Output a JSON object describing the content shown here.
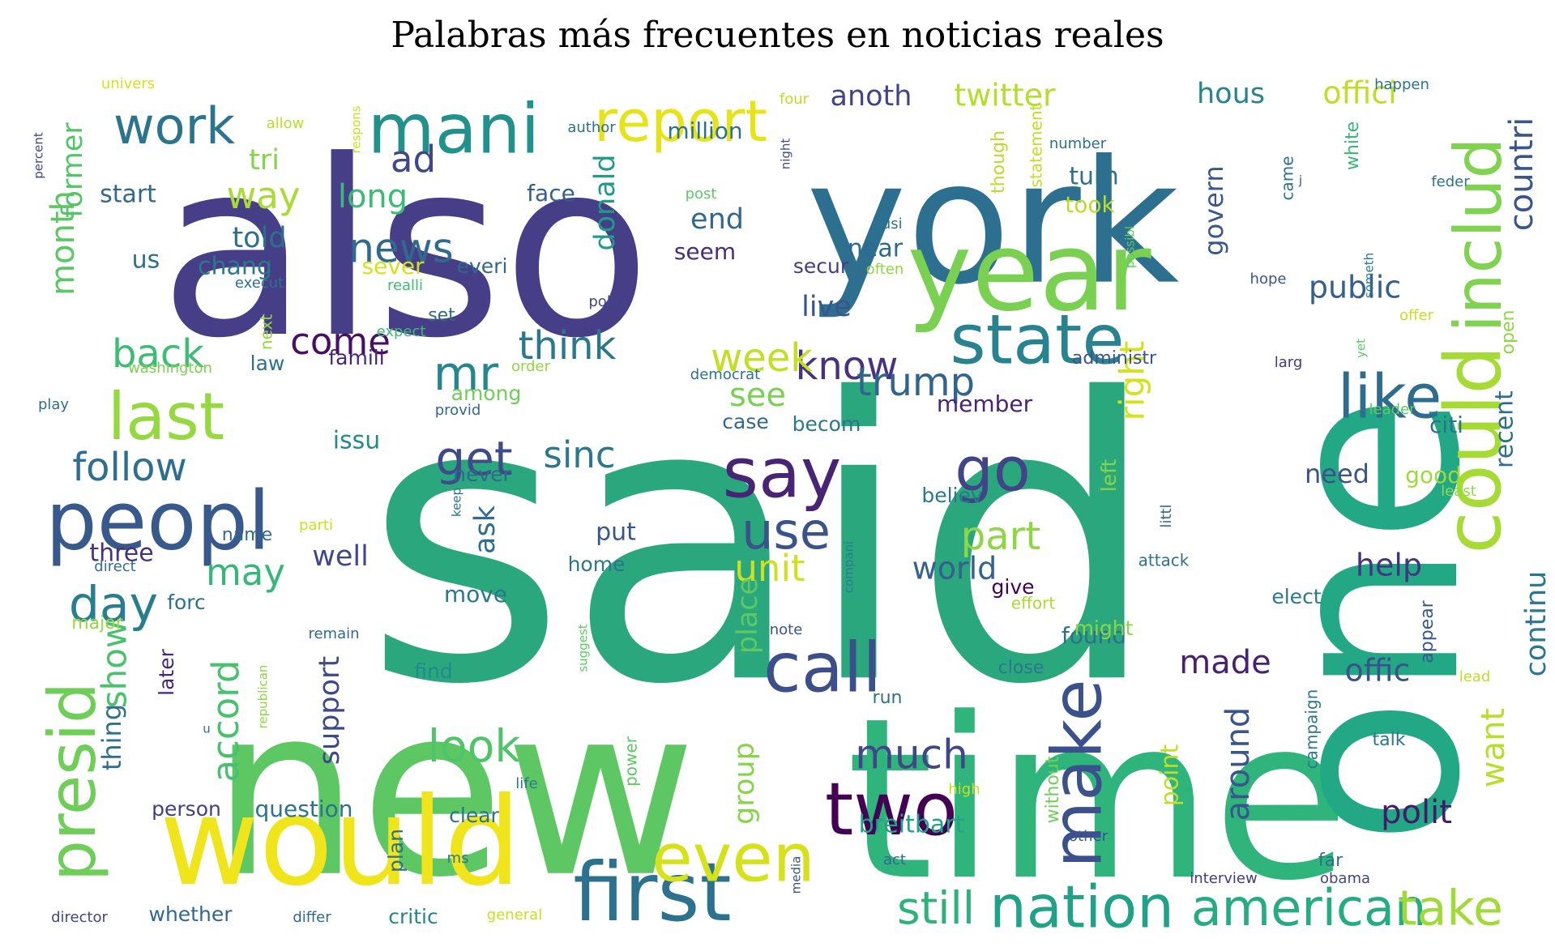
{
  "chart_data": {
    "type": "wordcloud",
    "title": "Palabras más frecuentes en noticias reales",
    "words": [
      {
        "text": "said",
        "size": 480,
        "color": "#2aa77d"
      },
      {
        "text": "also",
        "size": 300,
        "color": "#463e86"
      },
      {
        "text": "new",
        "size": 290,
        "color": "#5dc863"
      },
      {
        "text": "time",
        "size": 275,
        "color": "#2fb47c"
      },
      {
        "text": "one",
        "size": 300,
        "color": "#22a884",
        "rot": 1
      },
      {
        "text": "york",
        "size": 210,
        "color": "#2d6f8e"
      },
      {
        "text": "would",
        "size": 150,
        "color": "#f0e51a"
      },
      {
        "text": "year",
        "size": 135,
        "color": "#7ad151"
      },
      {
        "text": "could",
        "size": 95,
        "color": "#a6db35",
        "rot": 1
      },
      {
        "text": "mani",
        "size": 85,
        "color": "#21918c"
      },
      {
        "text": "peopl",
        "size": 100,
        "color": "#38598c"
      },
      {
        "text": "first",
        "size": 100,
        "color": "#2c728e"
      },
      {
        "text": "state",
        "size": 85,
        "color": "#26838f"
      },
      {
        "text": "make",
        "size": 85,
        "color": "#3b518b",
        "rot": 1
      },
      {
        "text": "two",
        "size": 90,
        "color": "#440154"
      },
      {
        "text": "even",
        "size": 82,
        "color": "#d5e21a"
      },
      {
        "text": "call",
        "size": 85,
        "color": "#3c4f8a"
      },
      {
        "text": "say",
        "size": 85,
        "color": "#482475"
      },
      {
        "text": "last",
        "size": 80,
        "color": "#95d840"
      },
      {
        "text": "includ",
        "size": 80,
        "color": "#7fd34e",
        "rot": 1
      },
      {
        "text": "presid",
        "size": 80,
        "color": "#6ece58",
        "rot": 1
      },
      {
        "text": "like",
        "size": 75,
        "color": "#2e6d8e"
      },
      {
        "text": "report",
        "size": 70,
        "color": "#e5e419"
      },
      {
        "text": "go",
        "size": 75,
        "color": "#414487"
      },
      {
        "text": "nation",
        "size": 72,
        "color": "#1fa287"
      },
      {
        "text": "american",
        "size": 62,
        "color": "#25ac82"
      },
      {
        "text": "take",
        "size": 60,
        "color": "#a0da39"
      },
      {
        "text": "work",
        "size": 62,
        "color": "#2b748e"
      },
      {
        "text": "use",
        "size": 62,
        "color": "#3a538b"
      },
      {
        "text": "get",
        "size": 58,
        "color": "#3e4a89"
      },
      {
        "text": "day",
        "size": 60,
        "color": "#277f8e"
      },
      {
        "text": "still",
        "size": 55,
        "color": "#2db27d"
      },
      {
        "text": "mr",
        "size": 58,
        "color": "#24868e"
      },
      {
        "text": "much",
        "size": 50,
        "color": "#404688"
      },
      {
        "text": "look",
        "size": 55,
        "color": "#50c46a"
      },
      {
        "text": "know",
        "size": 48,
        "color": "#46327e"
      },
      {
        "text": "trump",
        "size": 48,
        "color": "#32658e"
      },
      {
        "text": "think",
        "size": 48,
        "color": "#2a788e"
      },
      {
        "text": "news",
        "size": 50,
        "color": "#306a8e"
      },
      {
        "text": "part",
        "size": 48,
        "color": "#8ed645"
      },
      {
        "text": "week",
        "size": 48,
        "color": "#c2df23"
      },
      {
        "text": "follow",
        "size": 48,
        "color": "#2e6e8e"
      },
      {
        "text": "sinc",
        "size": 45,
        "color": "#2a788e"
      },
      {
        "text": "back",
        "size": 48,
        "color": "#3dbc74"
      },
      {
        "text": "come",
        "size": 45,
        "color": "#471063"
      },
      {
        "text": "way",
        "size": 45,
        "color": "#a8db34"
      },
      {
        "text": "ad",
        "size": 45,
        "color": "#3f4788"
      },
      {
        "text": "countri",
        "size": 40,
        "color": "#39568c",
        "rot": 1
      },
      {
        "text": "unit",
        "size": 45,
        "color": "#d0e11c"
      },
      {
        "text": "may",
        "size": 45,
        "color": "#35b779"
      },
      {
        "text": "offic",
        "size": 38,
        "color": "#3b528b"
      },
      {
        "text": "made",
        "size": 40,
        "color": "#482173"
      },
      {
        "text": "polit",
        "size": 40,
        "color": "#48186a"
      },
      {
        "text": "help",
        "size": 38,
        "color": "#453581"
      },
      {
        "text": "world",
        "size": 38,
        "color": "#34618d"
      },
      {
        "text": "right",
        "size": 42,
        "color": "#d2e21b",
        "rot": 1
      },
      {
        "text": "public",
        "size": 38,
        "color": "#35608d"
      },
      {
        "text": "accord",
        "size": 45,
        "color": "#48c16e",
        "rot": 1
      },
      {
        "text": "show",
        "size": 42,
        "color": "#4ac16d",
        "rot": 1
      },
      {
        "text": "anoth",
        "size": 35,
        "color": "#414487"
      },
      {
        "text": "twitter",
        "size": 38,
        "color": "#b5de2b"
      },
      {
        "text": "hous",
        "size": 35,
        "color": "#25848e"
      },
      {
        "text": "offici",
        "size": 38,
        "color": "#bddf26"
      },
      {
        "text": "month",
        "size": 40,
        "color": "#5cc863",
        "rot": 1
      },
      {
        "text": "long",
        "size": 40,
        "color": "#3bbb75"
      },
      {
        "text": "tri",
        "size": 35,
        "color": "#84d44b"
      },
      {
        "text": "told",
        "size": 35,
        "color": "#2d708e"
      },
      {
        "text": "end",
        "size": 35,
        "color": "#31688e"
      },
      {
        "text": "donald",
        "size": 35,
        "color": "#1e9b8a",
        "rot": 1
      },
      {
        "text": "start",
        "size": 30,
        "color": "#31688e"
      },
      {
        "text": "former",
        "size": 35,
        "color": "#52c569",
        "rot": 1
      },
      {
        "text": "chang",
        "size": 30,
        "color": "#2a788e"
      },
      {
        "text": "us",
        "size": 30,
        "color": "#2d718e"
      },
      {
        "text": "sever",
        "size": 28,
        "color": "#d5e21a"
      },
      {
        "text": "everi",
        "size": 25,
        "color": "#31688e"
      },
      {
        "text": "face",
        "size": 28,
        "color": "#355f8d"
      },
      {
        "text": "million",
        "size": 28,
        "color": "#2c728e"
      },
      {
        "text": "turn",
        "size": 30,
        "color": "#2d708e"
      },
      {
        "text": "took",
        "size": 28,
        "color": "#bade28"
      },
      {
        "text": "govern",
        "size": 32,
        "color": "#38588c",
        "rot": 1
      },
      {
        "text": "near",
        "size": 30,
        "color": "#31688e"
      },
      {
        "text": "seem",
        "size": 28,
        "color": "#472d7b"
      },
      {
        "text": "live",
        "size": 35,
        "color": "#3a548c"
      },
      {
        "text": "secur",
        "size": 25,
        "color": "#433e85"
      },
      {
        "text": "see",
        "size": 40,
        "color": "#7ad151"
      },
      {
        "text": "member",
        "size": 28,
        "color": "#482475"
      },
      {
        "text": "case",
        "size": 25,
        "color": "#31688e"
      },
      {
        "text": "becom",
        "size": 25,
        "color": "#2a788e"
      },
      {
        "text": "issu",
        "size": 30,
        "color": "#238a8d"
      },
      {
        "text": "ask",
        "size": 35,
        "color": "#2f6c8e",
        "rot": 1
      },
      {
        "text": "never",
        "size": 25,
        "color": "#31688e"
      },
      {
        "text": "among",
        "size": 25,
        "color": "#6ece58"
      },
      {
        "text": "put",
        "size": 30,
        "color": "#3a548c"
      },
      {
        "text": "well",
        "size": 35,
        "color": "#3f4889"
      },
      {
        "text": "three",
        "size": 30,
        "color": "#46337e"
      },
      {
        "text": "need",
        "size": 32,
        "color": "#3b528b"
      },
      {
        "text": "good",
        "size": 28,
        "color": "#9fda3a"
      },
      {
        "text": "citi",
        "size": 28,
        "color": "#2c728e"
      },
      {
        "text": "recent",
        "size": 30,
        "color": "#2e6e8e",
        "rot": 1
      },
      {
        "text": "continu",
        "size": 35,
        "color": "#2a778e",
        "rot": 1
      },
      {
        "text": "want",
        "size": 40,
        "color": "#b8de29",
        "rot": 1
      },
      {
        "text": "around",
        "size": 40,
        "color": "#39568c",
        "rot": 1
      },
      {
        "text": "point",
        "size": 30,
        "color": "#c0df25",
        "rot": 1
      },
      {
        "text": "group",
        "size": 35,
        "color": "#86d549",
        "rot": 1
      },
      {
        "text": "place",
        "size": 35,
        "color": "#5ec962",
        "rot": 1
      },
      {
        "text": "breitbart",
        "size": 30,
        "color": "#20a386"
      },
      {
        "text": "support",
        "size": 35,
        "color": "#3e4989",
        "rot": 1
      },
      {
        "text": "question",
        "size": 28,
        "color": "#2c728e"
      },
      {
        "text": "person",
        "size": 25,
        "color": "#433e85"
      },
      {
        "text": "thing",
        "size": 32,
        "color": "#2e6f8e",
        "rot": 1
      },
      {
        "text": "later",
        "size": 25,
        "color": "#482576",
        "rot": 1
      },
      {
        "text": "find",
        "size": 25,
        "color": "#23898e"
      },
      {
        "text": "found",
        "size": 28,
        "color": "#2d708e"
      },
      {
        "text": "might",
        "size": 25,
        "color": "#8bd646"
      },
      {
        "text": "move",
        "size": 28,
        "color": "#2a788e"
      },
      {
        "text": "home",
        "size": 25,
        "color": "#2b758e"
      },
      {
        "text": "give",
        "size": 25,
        "color": "#440154"
      },
      {
        "text": "effort",
        "size": 20,
        "color": "#addc30"
      },
      {
        "text": "close",
        "size": 22,
        "color": "#2a788e"
      },
      {
        "text": "run",
        "size": 22,
        "color": "#2c728e"
      },
      {
        "text": "elect",
        "size": 25,
        "color": "#2a778e"
      },
      {
        "text": "talk",
        "size": 22,
        "color": "#2a788e"
      },
      {
        "text": "appear",
        "size": 22,
        "color": "#38598c",
        "rot": 1
      },
      {
        "text": "lead",
        "size": 18,
        "color": "#bddf26"
      },
      {
        "text": "forc",
        "size": 25,
        "color": "#2c728e"
      },
      {
        "text": "name",
        "size": 22,
        "color": "#31688e"
      },
      {
        "text": "direct",
        "size": 18,
        "color": "#2d708e"
      },
      {
        "text": "major",
        "size": 22,
        "color": "#95d840"
      },
      {
        "text": "parti",
        "size": 18,
        "color": "#c8e020"
      },
      {
        "text": "keep",
        "size": 15,
        "color": "#2d708e",
        "rot": 1
      },
      {
        "text": "compani",
        "size": 15,
        "color": "#277e8e",
        "rot": 1
      },
      {
        "text": "believ",
        "size": 25,
        "color": "#2a788e"
      },
      {
        "text": "left",
        "size": 25,
        "color": "#86d549",
        "rot": 1
      },
      {
        "text": "littl",
        "size": 18,
        "color": "#31688e",
        "rot": 1
      },
      {
        "text": "attack",
        "size": 20,
        "color": "#2c728e"
      },
      {
        "text": "least",
        "size": 18,
        "color": "#8fd744"
      },
      {
        "text": "leader",
        "size": 18,
        "color": "#5ec962"
      },
      {
        "text": "remain",
        "size": 18,
        "color": "#31688e"
      },
      {
        "text": "suggest",
        "size": 15,
        "color": "#5ec962",
        "rot": 1
      },
      {
        "text": "note",
        "size": 18,
        "color": "#3a548c"
      },
      {
        "text": "republican",
        "size": 15,
        "color": "#8ed645",
        "rot": 1
      },
      {
        "text": "u",
        "size": 15,
        "color": "#2c728e"
      },
      {
        "text": "power",
        "size": 20,
        "color": "#5cc863",
        "rot": 1
      },
      {
        "text": "life",
        "size": 18,
        "color": "#2a788e"
      },
      {
        "text": "high",
        "size": 18,
        "color": "#c8e020"
      },
      {
        "text": "without",
        "size": 22,
        "color": "#6ece58",
        "rot": 1
      },
      {
        "text": "other",
        "size": 18,
        "color": "#3a548c"
      },
      {
        "text": "campaign",
        "size": 20,
        "color": "#2a788e",
        "rot": 1
      },
      {
        "text": "far",
        "size": 22,
        "color": "#2d708e"
      },
      {
        "text": "obama",
        "size": 18,
        "color": "#404688"
      },
      {
        "text": "interview",
        "size": 18,
        "color": "#443a83"
      },
      {
        "text": "media",
        "size": 15,
        "color": "#3b528b",
        "rot": 1
      },
      {
        "text": "act",
        "size": 18,
        "color": "#31688e"
      },
      {
        "text": "clear",
        "size": 25,
        "color": "#2c728e"
      },
      {
        "text": "plan",
        "size": 25,
        "color": "#2d708e",
        "rot": 1
      },
      {
        "text": "ms",
        "size": 18,
        "color": "#2a788e"
      },
      {
        "text": "critic",
        "size": 25,
        "color": "#25848e"
      },
      {
        "text": "differ",
        "size": 18,
        "color": "#31688e"
      },
      {
        "text": "general",
        "size": 18,
        "color": "#c8e020"
      },
      {
        "text": "whether",
        "size": 25,
        "color": "#31688e"
      },
      {
        "text": "director",
        "size": 18,
        "color": "#404688"
      },
      {
        "text": "famili",
        "size": 25,
        "color": "#482475"
      },
      {
        "text": "law",
        "size": 25,
        "color": "#2c728e"
      },
      {
        "text": "washington",
        "size": 18,
        "color": "#7ad151"
      },
      {
        "text": "play",
        "size": 18,
        "color": "#2d708e"
      },
      {
        "text": "provid",
        "size": 18,
        "color": "#31688e"
      },
      {
        "text": "order",
        "size": 18,
        "color": "#8fd744"
      },
      {
        "text": "democrat",
        "size": 18,
        "color": "#2c728e"
      },
      {
        "text": "administr",
        "size": 22,
        "color": "#3a548c"
      },
      {
        "text": "expect",
        "size": 18,
        "color": "#3dbc74"
      },
      {
        "text": "set",
        "size": 22,
        "color": "#31688e"
      },
      {
        "text": "next",
        "size": 20,
        "color": "#95d840",
        "rot": 1
      },
      {
        "text": "realli",
        "size": 18,
        "color": "#3dbc74"
      },
      {
        "text": "execut",
        "size": 18,
        "color": "#2c728e"
      },
      {
        "text": "polici",
        "size": 18,
        "color": "#404688"
      },
      {
        "text": "often",
        "size": 18,
        "color": "#8fd744"
      },
      {
        "text": "possibl",
        "size": 15,
        "color": "#5ec962",
        "rot": 1
      },
      {
        "text": "busi",
        "size": 18,
        "color": "#2c728e"
      },
      {
        "text": "post",
        "size": 18,
        "color": "#5ec962"
      },
      {
        "text": "night",
        "size": 15,
        "color": "#3b528b",
        "rot": 1
      },
      {
        "text": "four",
        "size": 18,
        "color": "#bade28"
      },
      {
        "text": "though",
        "size": 22,
        "color": "#bade28",
        "rot": 1
      },
      {
        "text": "number",
        "size": 18,
        "color": "#2d708e"
      },
      {
        "text": "statement",
        "size": 20,
        "color": "#c2df23",
        "rot": 1
      },
      {
        "text": "came",
        "size": 20,
        "color": "#2c728e",
        "rot": 1
      },
      {
        "text": "j",
        "size": 15,
        "color": "#3a548c"
      },
      {
        "text": "white",
        "size": 22,
        "color": "#35b779",
        "rot": 1
      },
      {
        "text": "feder",
        "size": 18,
        "color": "#2c728e"
      },
      {
        "text": "hope",
        "size": 18,
        "color": "#3a548c"
      },
      {
        "text": "someth",
        "size": 15,
        "color": "#2a788e",
        "rot": 1
      },
      {
        "text": "offer",
        "size": 18,
        "color": "#c8e020"
      },
      {
        "text": "open",
        "size": 22,
        "color": "#8fd744",
        "rot": 1
      },
      {
        "text": "larg",
        "size": 18,
        "color": "#443a83"
      },
      {
        "text": "yet",
        "size": 15,
        "color": "#5ec962",
        "rot": 1
      },
      {
        "text": "happen",
        "size": 18,
        "color": "#2c728e"
      },
      {
        "text": "univers",
        "size": 18,
        "color": "#d5e21a"
      },
      {
        "text": "allow",
        "size": 18,
        "color": "#b8de29"
      },
      {
        "text": "author",
        "size": 18,
        "color": "#2c728e"
      },
      {
        "text": "respons",
        "size": 15,
        "color": "#c8e020",
        "rot": 1
      },
      {
        "text": "percent",
        "size": 15,
        "color": "#404688",
        "rot": 1
      }
    ]
  }
}
